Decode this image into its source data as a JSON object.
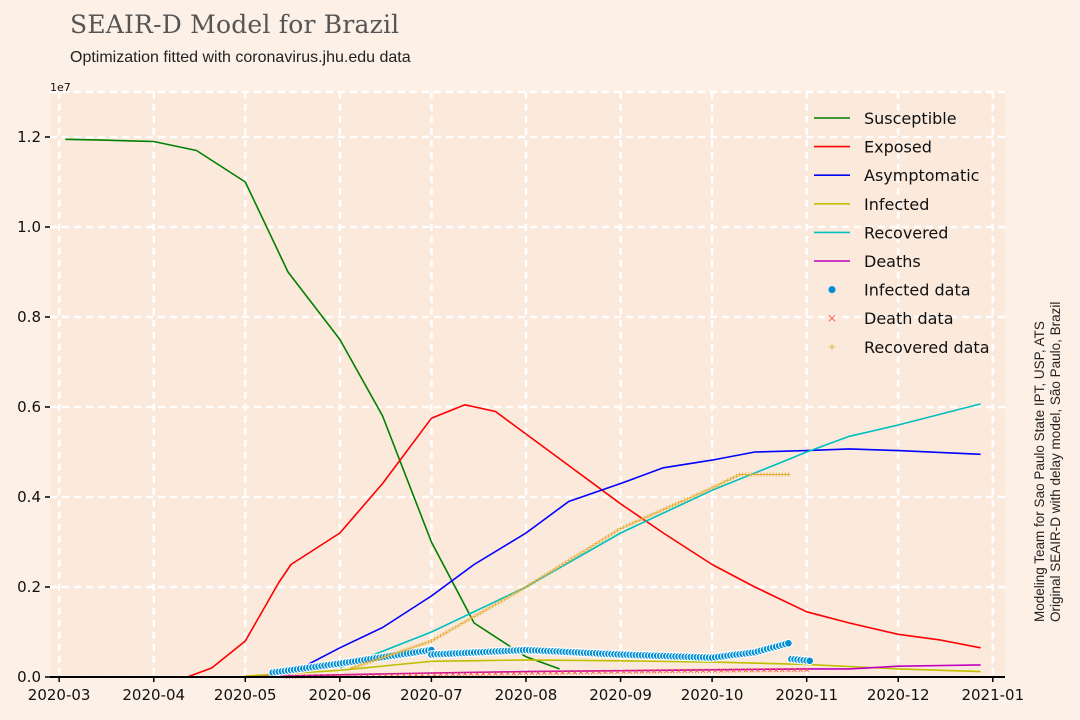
{
  "header": {
    "title": "SEAIR-D Model for Brazil",
    "subtitle": "Optimization fitted with coronavirus.jhu.edu data"
  },
  "credits": {
    "line1": "Modeling Team for Sao Paulo State IPT, USP, ATS",
    "line2": "Original SEAIR-D with delay model, São Paulo, Brazil"
  },
  "colors": {
    "background": "#fdf0e6",
    "plot_background": "#fbe9dc",
    "grid": "#ffffff",
    "axis": "#000000"
  },
  "chart_data": {
    "type": "line",
    "title": "SEAIR-D Model for Brazil",
    "subtitle": "Optimization fitted with coronavirus.jhu.edu data",
    "xlabel": "",
    "ylabel": "",
    "y_scale_label": "1e7",
    "xlim": [
      "2020-02-27",
      "2021-01-05"
    ],
    "ylim": [
      0,
      1.3
    ],
    "x_ticks": [
      "2020-03",
      "2020-04",
      "2020-05",
      "2020-06",
      "2020-07",
      "2020-08",
      "2020-09",
      "2020-10",
      "2020-11",
      "2020-12",
      "2021-01"
    ],
    "y_ticks": [
      0.0,
      0.2,
      0.4,
      0.6,
      0.8,
      1.0,
      1.2
    ],
    "grid": true,
    "legend_position": "top-right",
    "series": [
      {
        "name": "Susceptible",
        "kind": "line",
        "color": "#008000",
        "points": [
          [
            "2020-03-03",
            1.195
          ],
          [
            "2020-03-15",
            1.193
          ],
          [
            "2020-04-01",
            1.19
          ],
          [
            "2020-04-15",
            1.17
          ],
          [
            "2020-05-01",
            1.1
          ],
          [
            "2020-05-15",
            0.9
          ],
          [
            "2020-06-01",
            0.75
          ],
          [
            "2020-06-15",
            0.58
          ],
          [
            "2020-07-01",
            0.3
          ],
          [
            "2020-07-15",
            0.12
          ],
          [
            "2020-08-01",
            0.045
          ],
          [
            "2020-08-12",
            0.018
          ]
        ]
      },
      {
        "name": "Exposed",
        "kind": "line",
        "color": "#ff0000",
        "points": [
          [
            "2020-04-12",
            0.0
          ],
          [
            "2020-04-20",
            0.02
          ],
          [
            "2020-05-01",
            0.08
          ],
          [
            "2020-05-12",
            0.21
          ],
          [
            "2020-05-16",
            0.25
          ],
          [
            "2020-06-01",
            0.32
          ],
          [
            "2020-06-15",
            0.43
          ],
          [
            "2020-07-01",
            0.575
          ],
          [
            "2020-07-12",
            0.605
          ],
          [
            "2020-07-22",
            0.59
          ],
          [
            "2020-08-01",
            0.54
          ],
          [
            "2020-08-15",
            0.47
          ],
          [
            "2020-09-01",
            0.385
          ],
          [
            "2020-09-15",
            0.32
          ],
          [
            "2020-10-01",
            0.25
          ],
          [
            "2020-10-15",
            0.2
          ],
          [
            "2020-11-01",
            0.145
          ],
          [
            "2020-11-15",
            0.12
          ],
          [
            "2020-12-01",
            0.095
          ],
          [
            "2020-12-15",
            0.082
          ],
          [
            "2020-12-28",
            0.065
          ]
        ]
      },
      {
        "name": "Asymptomatic",
        "kind": "line",
        "color": "#0000ff",
        "points": [
          [
            "2020-05-15",
            0.005
          ],
          [
            "2020-06-01",
            0.065
          ],
          [
            "2020-06-15",
            0.11
          ],
          [
            "2020-07-01",
            0.18
          ],
          [
            "2020-07-15",
            0.25
          ],
          [
            "2020-08-01",
            0.32
          ],
          [
            "2020-08-15",
            0.39
          ],
          [
            "2020-09-01",
            0.43
          ],
          [
            "2020-09-15",
            0.465
          ],
          [
            "2020-10-01",
            0.482
          ],
          [
            "2020-10-15",
            0.5
          ],
          [
            "2020-11-01",
            0.503
          ],
          [
            "2020-11-15",
            0.507
          ],
          [
            "2020-12-01",
            0.503
          ],
          [
            "2020-12-28",
            0.495
          ]
        ]
      },
      {
        "name": "Infected",
        "kind": "line",
        "color": "#bfbf00",
        "points": [
          [
            "2020-05-01",
            0.002
          ],
          [
            "2020-06-01",
            0.015
          ],
          [
            "2020-07-01",
            0.035
          ],
          [
            "2020-08-01",
            0.038
          ],
          [
            "2020-09-01",
            0.036
          ],
          [
            "2020-10-01",
            0.033
          ],
          [
            "2020-11-01",
            0.028
          ],
          [
            "2020-12-01",
            0.018
          ],
          [
            "2020-12-28",
            0.012
          ]
        ]
      },
      {
        "name": "Recovered",
        "kind": "line",
        "color": "#00bfbf",
        "points": [
          [
            "2020-06-01",
            0.02
          ],
          [
            "2020-07-01",
            0.1
          ],
          [
            "2020-08-01",
            0.2
          ],
          [
            "2020-09-01",
            0.32
          ],
          [
            "2020-10-01",
            0.415
          ],
          [
            "2020-11-01",
            0.5
          ],
          [
            "2020-11-15",
            0.535
          ],
          [
            "2020-12-01",
            0.56
          ],
          [
            "2020-12-28",
            0.607
          ]
        ]
      },
      {
        "name": "Deaths",
        "kind": "line",
        "color": "#bf00bf",
        "points": [
          [
            "2020-05-01",
            0.0
          ],
          [
            "2020-06-01",
            0.005
          ],
          [
            "2020-07-01",
            0.009
          ],
          [
            "2020-08-01",
            0.012
          ],
          [
            "2020-09-01",
            0.014
          ],
          [
            "2020-10-01",
            0.016
          ],
          [
            "2020-11-01",
            0.018
          ],
          [
            "2020-11-15",
            0.018
          ],
          [
            "2020-12-01",
            0.024
          ],
          [
            "2020-12-28",
            0.027
          ]
        ]
      },
      {
        "name": "Infected data",
        "kind": "dots",
        "color": "#008fd5",
        "points": [
          [
            "2020-05-10",
            0.01
          ],
          [
            "2020-06-01",
            0.03
          ],
          [
            "2020-07-01",
            0.06
          ],
          [
            "2020-07-01",
            0.05
          ],
          [
            "2020-08-01",
            0.06
          ],
          [
            "2020-09-01",
            0.05
          ],
          [
            "2020-10-01",
            0.043
          ],
          [
            "2020-10-15",
            0.055
          ],
          [
            "2020-10-26",
            0.075
          ],
          [
            "2020-10-27",
            0.04
          ],
          [
            "2020-11-02",
            0.036
          ]
        ]
      },
      {
        "name": "Death data",
        "kind": "cross",
        "color": "#fc4f30",
        "points": [
          [
            "2020-05-15",
            0.001
          ],
          [
            "2020-06-15",
            0.004
          ],
          [
            "2020-07-15",
            0.007
          ],
          [
            "2020-08-15",
            0.01
          ],
          [
            "2020-09-15",
            0.013
          ],
          [
            "2020-10-15",
            0.015
          ],
          [
            "2020-11-02",
            0.016
          ]
        ]
      },
      {
        "name": "Recovered data",
        "kind": "plus",
        "color": "#e5ae38",
        "points": [
          [
            "2020-06-05",
            0.02
          ],
          [
            "2020-07-01",
            0.08
          ],
          [
            "2020-08-01",
            0.2
          ],
          [
            "2020-09-01",
            0.33
          ],
          [
            "2020-10-01",
            0.42
          ],
          [
            "2020-10-10",
            0.45
          ],
          [
            "2020-10-26",
            0.45
          ]
        ]
      }
    ]
  }
}
